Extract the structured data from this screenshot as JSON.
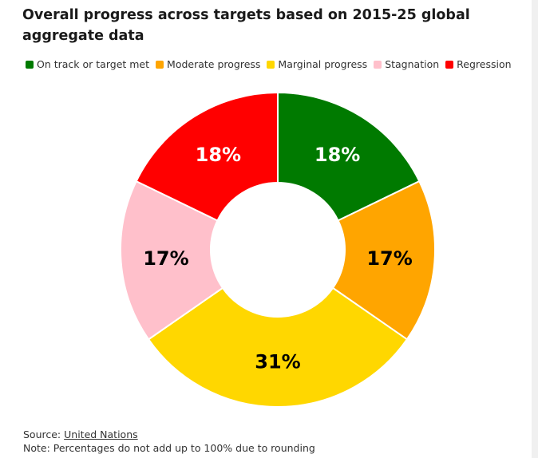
{
  "title": "Overall progress across targets based on 2015-25 global aggregate data",
  "legend": [
    {
      "label": "On track or target met",
      "color": "#007a00"
    },
    {
      "label": "Moderate progress",
      "color": "#ffa500"
    },
    {
      "label": "Marginal progress",
      "color": "#ffd700"
    },
    {
      "label": "Stagnation",
      "color": "#ffc0cb"
    },
    {
      "label": "Regression",
      "color": "#ff0000"
    }
  ],
  "footer": {
    "source_prefix": "Source: ",
    "source_link": "United Nations",
    "note": "Note: Percentages do not add up to 100% due to rounding"
  },
  "chart_data": {
    "type": "pie",
    "donut": true,
    "slices": [
      {
        "label": "On track or target met",
        "value": 18,
        "text": "18%",
        "color": "#007a00",
        "label_color": "#ffffff"
      },
      {
        "label": "Moderate progress",
        "value": 17,
        "text": "17%",
        "color": "#ffa500",
        "label_color": "#000000"
      },
      {
        "label": "Marginal progress",
        "value": 31,
        "text": "31%",
        "color": "#ffd700",
        "label_color": "#000000"
      },
      {
        "label": "Stagnation",
        "value": 17,
        "text": "17%",
        "color": "#ffc0cb",
        "label_color": "#000000"
      },
      {
        "label": "Regression",
        "value": 18,
        "text": "18%",
        "color": "#ff0000",
        "label_color": "#ffffff"
      }
    ]
  }
}
